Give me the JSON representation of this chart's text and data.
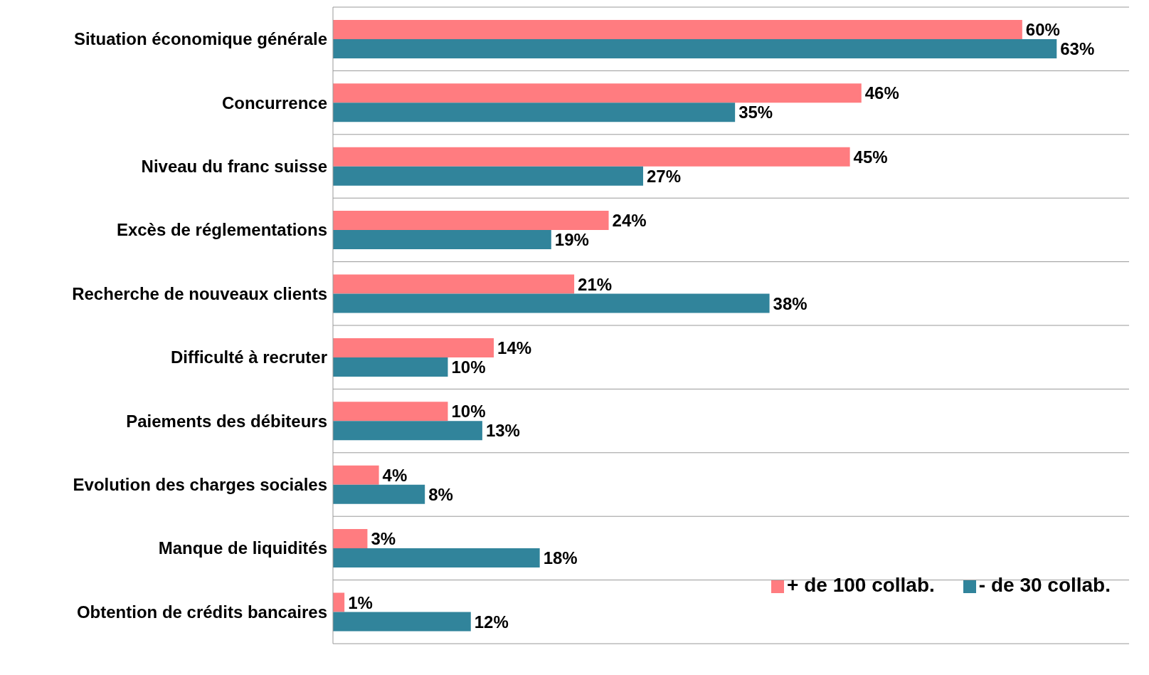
{
  "chart_data": {
    "type": "bar",
    "orientation": "horizontal",
    "categories": [
      "Situation économique générale",
      "Concurrence",
      "Niveau du franc suisse",
      "Excès de réglementations",
      "Recherche de nouveaux clients",
      "Difficulté à recruter",
      "Paiements des débiteurs",
      "Evolution des charges sociales",
      "Manque de liquidités",
      "Obtention de crédits bancaires"
    ],
    "series": [
      {
        "name": "+ de 100 collab.",
        "color": "#ff7c80",
        "values": [
          60,
          46,
          45,
          24,
          21,
          14,
          10,
          4,
          3,
          1
        ],
        "value_labels": [
          "60%",
          "46%",
          "45%",
          "24%",
          "21%",
          "14%",
          "10%",
          "4%",
          "3%",
          "1%"
        ]
      },
      {
        "name": "- de 30 collab.",
        "color": "#31849b",
        "values": [
          63,
          35,
          27,
          19,
          38,
          10,
          13,
          8,
          18,
          12
        ],
        "value_labels": [
          "63%",
          "35%",
          "27%",
          "19%",
          "38%",
          "10%",
          "13%",
          "8%",
          "18%",
          "12%"
        ]
      }
    ],
    "grid": "y",
    "legend": "bottom right"
  }
}
